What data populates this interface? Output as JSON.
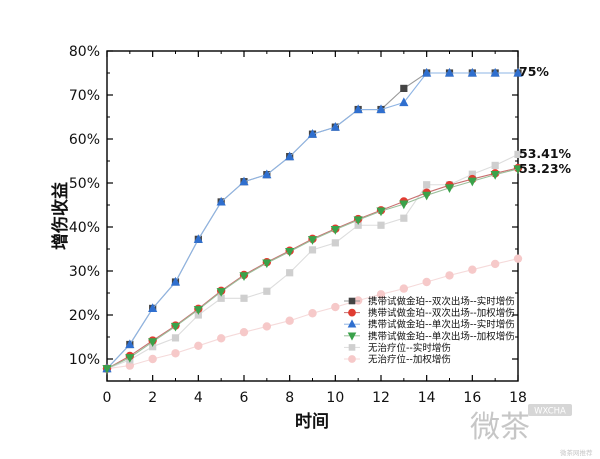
{
  "chart_data": {
    "type": "line",
    "title": "",
    "xlabel": "时间",
    "ylabel": "增伤收益",
    "xlim": [
      0,
      18
    ],
    "ylim": [
      0.05,
      0.8
    ],
    "x_ticks": [
      "0",
      "2",
      "4",
      "6",
      "8",
      "10",
      "12",
      "14",
      "16",
      "18"
    ],
    "y_ticks": [
      "10%",
      "20%",
      "30%",
      "40%",
      "50%",
      "60%",
      "70%",
      "80%"
    ],
    "grid": false,
    "legend_position": "lower-right",
    "end_labels": [
      "75%",
      "53.41%",
      "53.23%"
    ],
    "series": [
      {
        "name": "携带试做金珀--双次出场--实时增伤",
        "marker": "square",
        "color": "#444444",
        "line_color": "#999999",
        "x": [
          0,
          1,
          2,
          3,
          4,
          5,
          6,
          7,
          8,
          9,
          10,
          11,
          12,
          13,
          14,
          15,
          16,
          17,
          18
        ],
        "y": [
          0.078,
          0.133,
          0.215,
          0.275,
          0.372,
          0.457,
          0.503,
          0.519,
          0.56,
          0.611,
          0.627,
          0.667,
          0.667,
          0.715,
          0.75,
          0.75,
          0.75,
          0.75,
          0.75
        ]
      },
      {
        "name": "携带试做金珀--双次出场--加权增伤",
        "marker": "circle",
        "color": "#e03c31",
        "line_color": "#c87070",
        "x": [
          0,
          1,
          2,
          3,
          4,
          5,
          6,
          7,
          8,
          9,
          10,
          11,
          12,
          13,
          14,
          15,
          16,
          17,
          18
        ],
        "y": [
          0.078,
          0.107,
          0.142,
          0.176,
          0.214,
          0.255,
          0.291,
          0.32,
          0.346,
          0.373,
          0.396,
          0.418,
          0.438,
          0.458,
          0.478,
          0.495,
          0.509,
          0.522,
          0.534
        ]
      },
      {
        "name": "携带试做金珀--单次出场--实时增伤",
        "marker": "triangle-up",
        "color": "#2f6fcf",
        "line_color": "#8eb4e4",
        "x": [
          0,
          1,
          2,
          3,
          4,
          5,
          6,
          7,
          8,
          9,
          10,
          11,
          12,
          13,
          14,
          15,
          16,
          17,
          18
        ],
        "y": [
          0.078,
          0.133,
          0.215,
          0.275,
          0.372,
          0.457,
          0.503,
          0.519,
          0.56,
          0.611,
          0.627,
          0.667,
          0.667,
          0.683,
          0.75,
          0.75,
          0.75,
          0.75,
          0.75
        ]
      },
      {
        "name": "携带试做金珀--单次出场--加权增伤",
        "marker": "triangle-down",
        "color": "#3aa24a",
        "line_color": "#9bbf9b",
        "x": [
          0,
          1,
          2,
          3,
          4,
          5,
          6,
          7,
          8,
          9,
          10,
          11,
          12,
          13,
          14,
          15,
          16,
          17,
          18
        ],
        "y": [
          0.078,
          0.103,
          0.139,
          0.174,
          0.212,
          0.253,
          0.289,
          0.318,
          0.344,
          0.371,
          0.394,
          0.416,
          0.436,
          0.452,
          0.472,
          0.489,
          0.504,
          0.519,
          0.532
        ]
      },
      {
        "name": "无治疗位--实时增伤",
        "marker": "square",
        "color": "#cfcfcf",
        "line_color": "#dddddd",
        "x": [
          0,
          1,
          2,
          3,
          4,
          5,
          6,
          7,
          8,
          9,
          10,
          11,
          12,
          13,
          14,
          15,
          16,
          17,
          18
        ],
        "y": [
          0.078,
          0.098,
          0.128,
          0.148,
          0.2,
          0.238,
          0.238,
          0.254,
          0.296,
          0.348,
          0.364,
          0.404,
          0.404,
          0.42,
          0.496,
          0.496,
          0.52,
          0.54,
          0.565
        ]
      },
      {
        "name": "无治疗位--加权增伤",
        "marker": "circle",
        "color": "#f6c9c9",
        "line_color": "#f5dada",
        "x": [
          0,
          1,
          2,
          3,
          4,
          5,
          6,
          7,
          8,
          9,
          10,
          11,
          12,
          13,
          14,
          15,
          16,
          17,
          18
        ],
        "y": [
          0.078,
          0.085,
          0.1,
          0.113,
          0.13,
          0.147,
          0.161,
          0.174,
          0.187,
          0.204,
          0.218,
          0.233,
          0.247,
          0.26,
          0.275,
          0.29,
          0.303,
          0.316,
          0.328
        ]
      }
    ]
  },
  "watermark": {
    "text": "微茶",
    "badge": "WXCHA",
    "small": "微茶网推荐"
  }
}
